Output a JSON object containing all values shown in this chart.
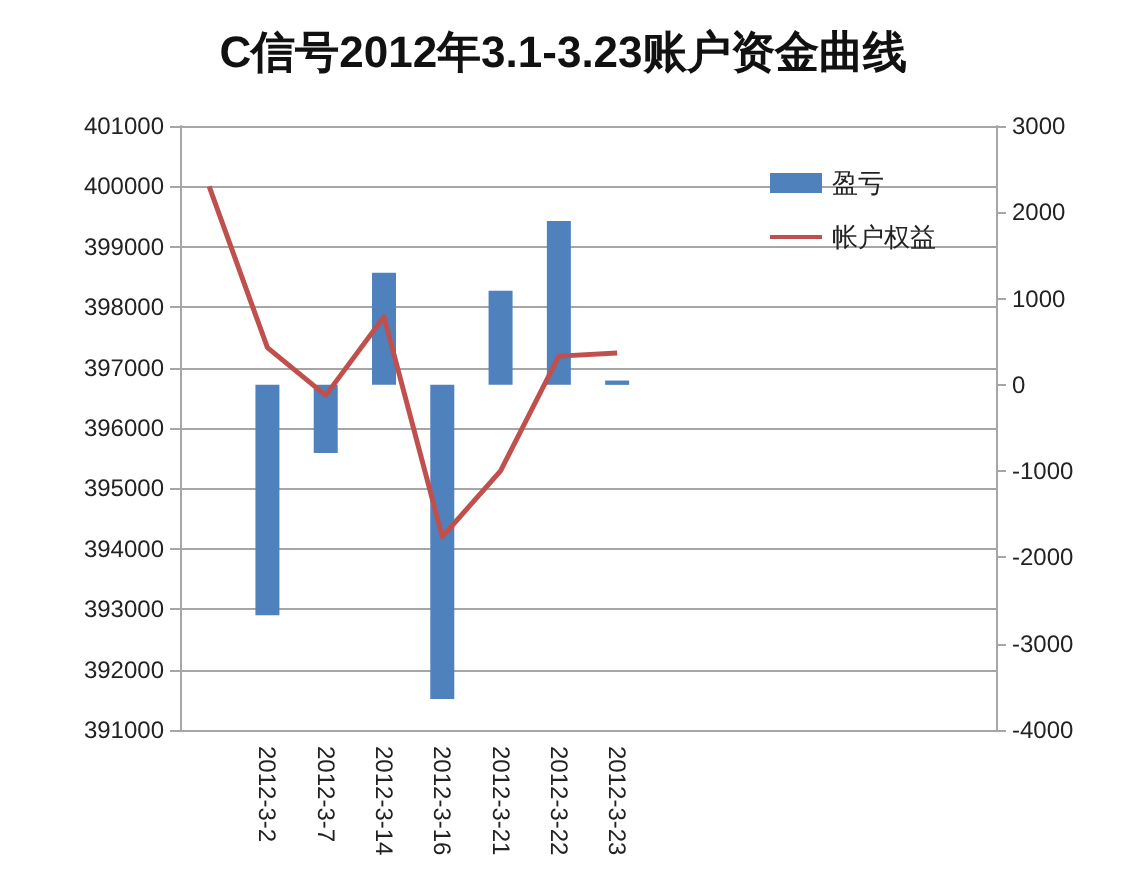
{
  "chart_data": {
    "type": "bar",
    "title": "C信号2012年3.1-3.23账户资金曲线",
    "categories": [
      null,
      "2012-3-2",
      "2012-3-7",
      "2012-3-14",
      "2012-3-16",
      "2012-3-21",
      "2012-3-22",
      "2012-3-23",
      null,
      null,
      null,
      null,
      null,
      null
    ],
    "series": [
      {
        "name": "盈亏",
        "axis": "y2",
        "color": "#4f81bd",
        "values": [
          null,
          -2670,
          -790,
          1300,
          -3640,
          1090,
          1900,
          50,
          null,
          null,
          null,
          null,
          null,
          null
        ]
      },
      {
        "name": "帐户权益",
        "type": "line",
        "color": "#c0504d",
        "values": [
          400000,
          397330,
          396540,
          397840,
          394200,
          395290,
          397190,
          397240,
          null,
          null,
          null,
          null,
          null,
          null
        ]
      }
    ],
    "ylim": [
      391000,
      401000
    ],
    "yticks": [
      391000,
      392000,
      393000,
      394000,
      395000,
      396000,
      397000,
      398000,
      399000,
      400000,
      401000
    ],
    "y2lim": [
      -4000,
      3000
    ],
    "y2ticks": [
      -4000,
      -3000,
      -2000,
      -1000,
      0,
      1000,
      2000,
      3000
    ],
    "grid": "y",
    "legend": "top right",
    "marker": "none"
  }
}
